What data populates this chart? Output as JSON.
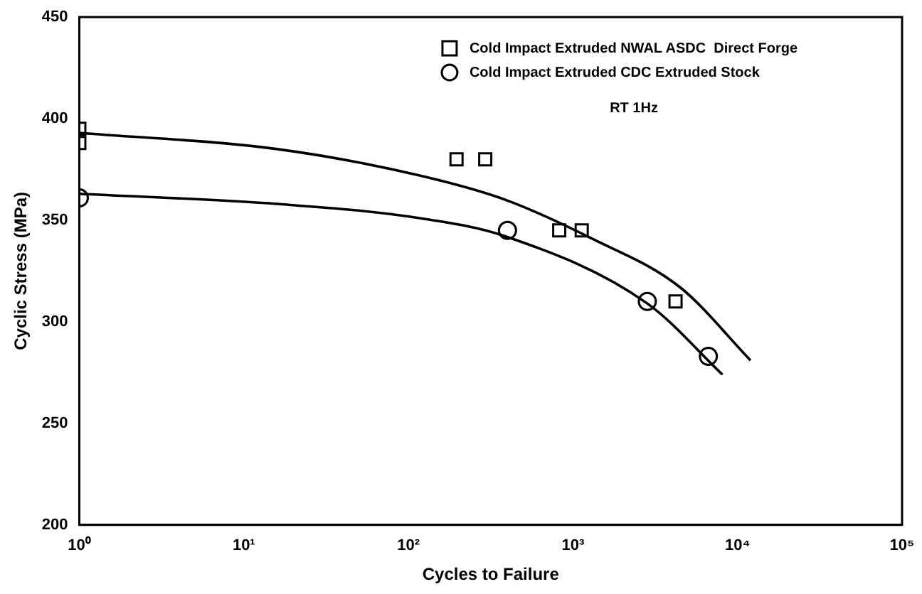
{
  "chart_data": {
    "type": "scatter",
    "xlabel": "Cycles to Failure",
    "ylabel": "Cyclic Stress (MPa)",
    "log": "x",
    "xlim": [
      1,
      100000
    ],
    "xticks": [
      {
        "value": 1,
        "label": "10⁰"
      },
      {
        "value": 10,
        "label": "10¹"
      },
      {
        "value": 100,
        "label": "10²"
      },
      {
        "value": 1000,
        "label": "10³"
      },
      {
        "value": 10000,
        "label": "10⁴"
      },
      {
        "value": 100000,
        "label": "10⁵"
      }
    ],
    "ylim": [
      200,
      450
    ],
    "yticks": [
      200,
      250,
      300,
      350,
      400,
      450
    ],
    "grid": false,
    "legend": "top right",
    "annotations": [
      "RT 1Hz"
    ],
    "series": [
      {
        "name": "Cold Impact Extruded NWAL ASDC  Direct Forge",
        "color": "#000000",
        "marker": "square",
        "x": [
          1,
          1,
          196,
          293,
          825,
          1130,
          4200
        ],
        "values": [
          395,
          388,
          380,
          380,
          345,
          345,
          310
        ]
      },
      {
        "name": "Cold Impact Extruded CDC Extruded Stock",
        "color": "#000000",
        "marker": "circle",
        "x": [
          1,
          400,
          2830,
          6650
        ],
        "values": [
          361,
          345,
          310,
          283
        ]
      },
      {
        "type": "line",
        "color": "#000000",
        "marker": "none",
        "x": [
          1,
          16,
          117,
          390,
          1300,
          4470,
          12000
        ],
        "values": [
          393,
          385,
          372,
          360,
          341,
          317,
          281
        ]
      },
      {
        "type": "line",
        "color": "#000000",
        "marker": "none",
        "x": [
          1,
          16,
          117,
          390,
          2830,
          8100
        ],
        "values": [
          363,
          358,
          351,
          342,
          309,
          274
        ]
      }
    ]
  }
}
